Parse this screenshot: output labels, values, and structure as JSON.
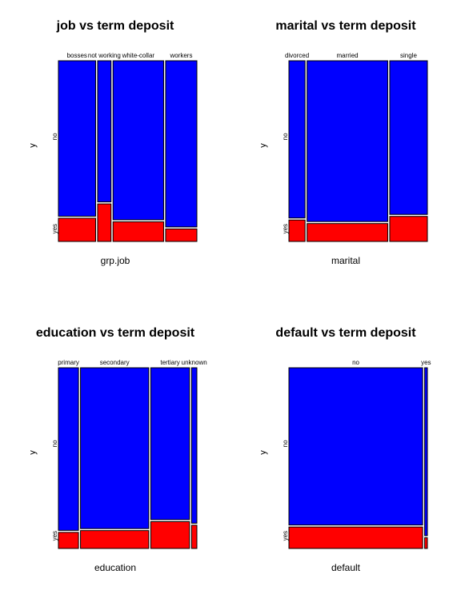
{
  "colors": {
    "yes": "#FF0000",
    "no": "#0000FF",
    "border": "#000000"
  },
  "chart_data": [
    {
      "type": "mosaic",
      "title": "job vs term deposit",
      "xlabel": "grp.job",
      "ylabel": "y",
      "levels": [
        "no",
        "yes"
      ],
      "categories": [
        "bosses",
        "not working",
        "white-collar",
        "workers"
      ],
      "weights": [
        0.25,
        0.09,
        0.34,
        0.21
      ],
      "yes_share": [
        0.13,
        0.21,
        0.11,
        0.07
      ]
    },
    {
      "type": "mosaic",
      "title": "marital vs term deposit",
      "xlabel": "marital",
      "ylabel": "y",
      "levels": [
        "no",
        "yes"
      ],
      "categories": [
        "divorced",
        "married",
        "single"
      ],
      "weights": [
        0.12,
        0.6,
        0.28
      ],
      "yes_share": [
        0.12,
        0.1,
        0.14
      ]
    },
    {
      "type": "mosaic",
      "title": "education vs term deposit",
      "xlabel": "education",
      "ylabel": "y",
      "levels": [
        "no",
        "yes"
      ],
      "categories": [
        "primary",
        "secondary",
        "tertiary",
        "unknown"
      ],
      "weights": [
        0.15,
        0.51,
        0.29,
        0.04
      ],
      "yes_share": [
        0.09,
        0.1,
        0.15,
        0.13
      ]
    },
    {
      "type": "mosaic",
      "title": "default vs term deposit",
      "xlabel": "default",
      "ylabel": "y",
      "levels": [
        "no",
        "yes"
      ],
      "categories": [
        "no",
        "yes"
      ],
      "weights": [
        0.98,
        0.02
      ],
      "yes_share": [
        0.12,
        0.06
      ]
    }
  ]
}
